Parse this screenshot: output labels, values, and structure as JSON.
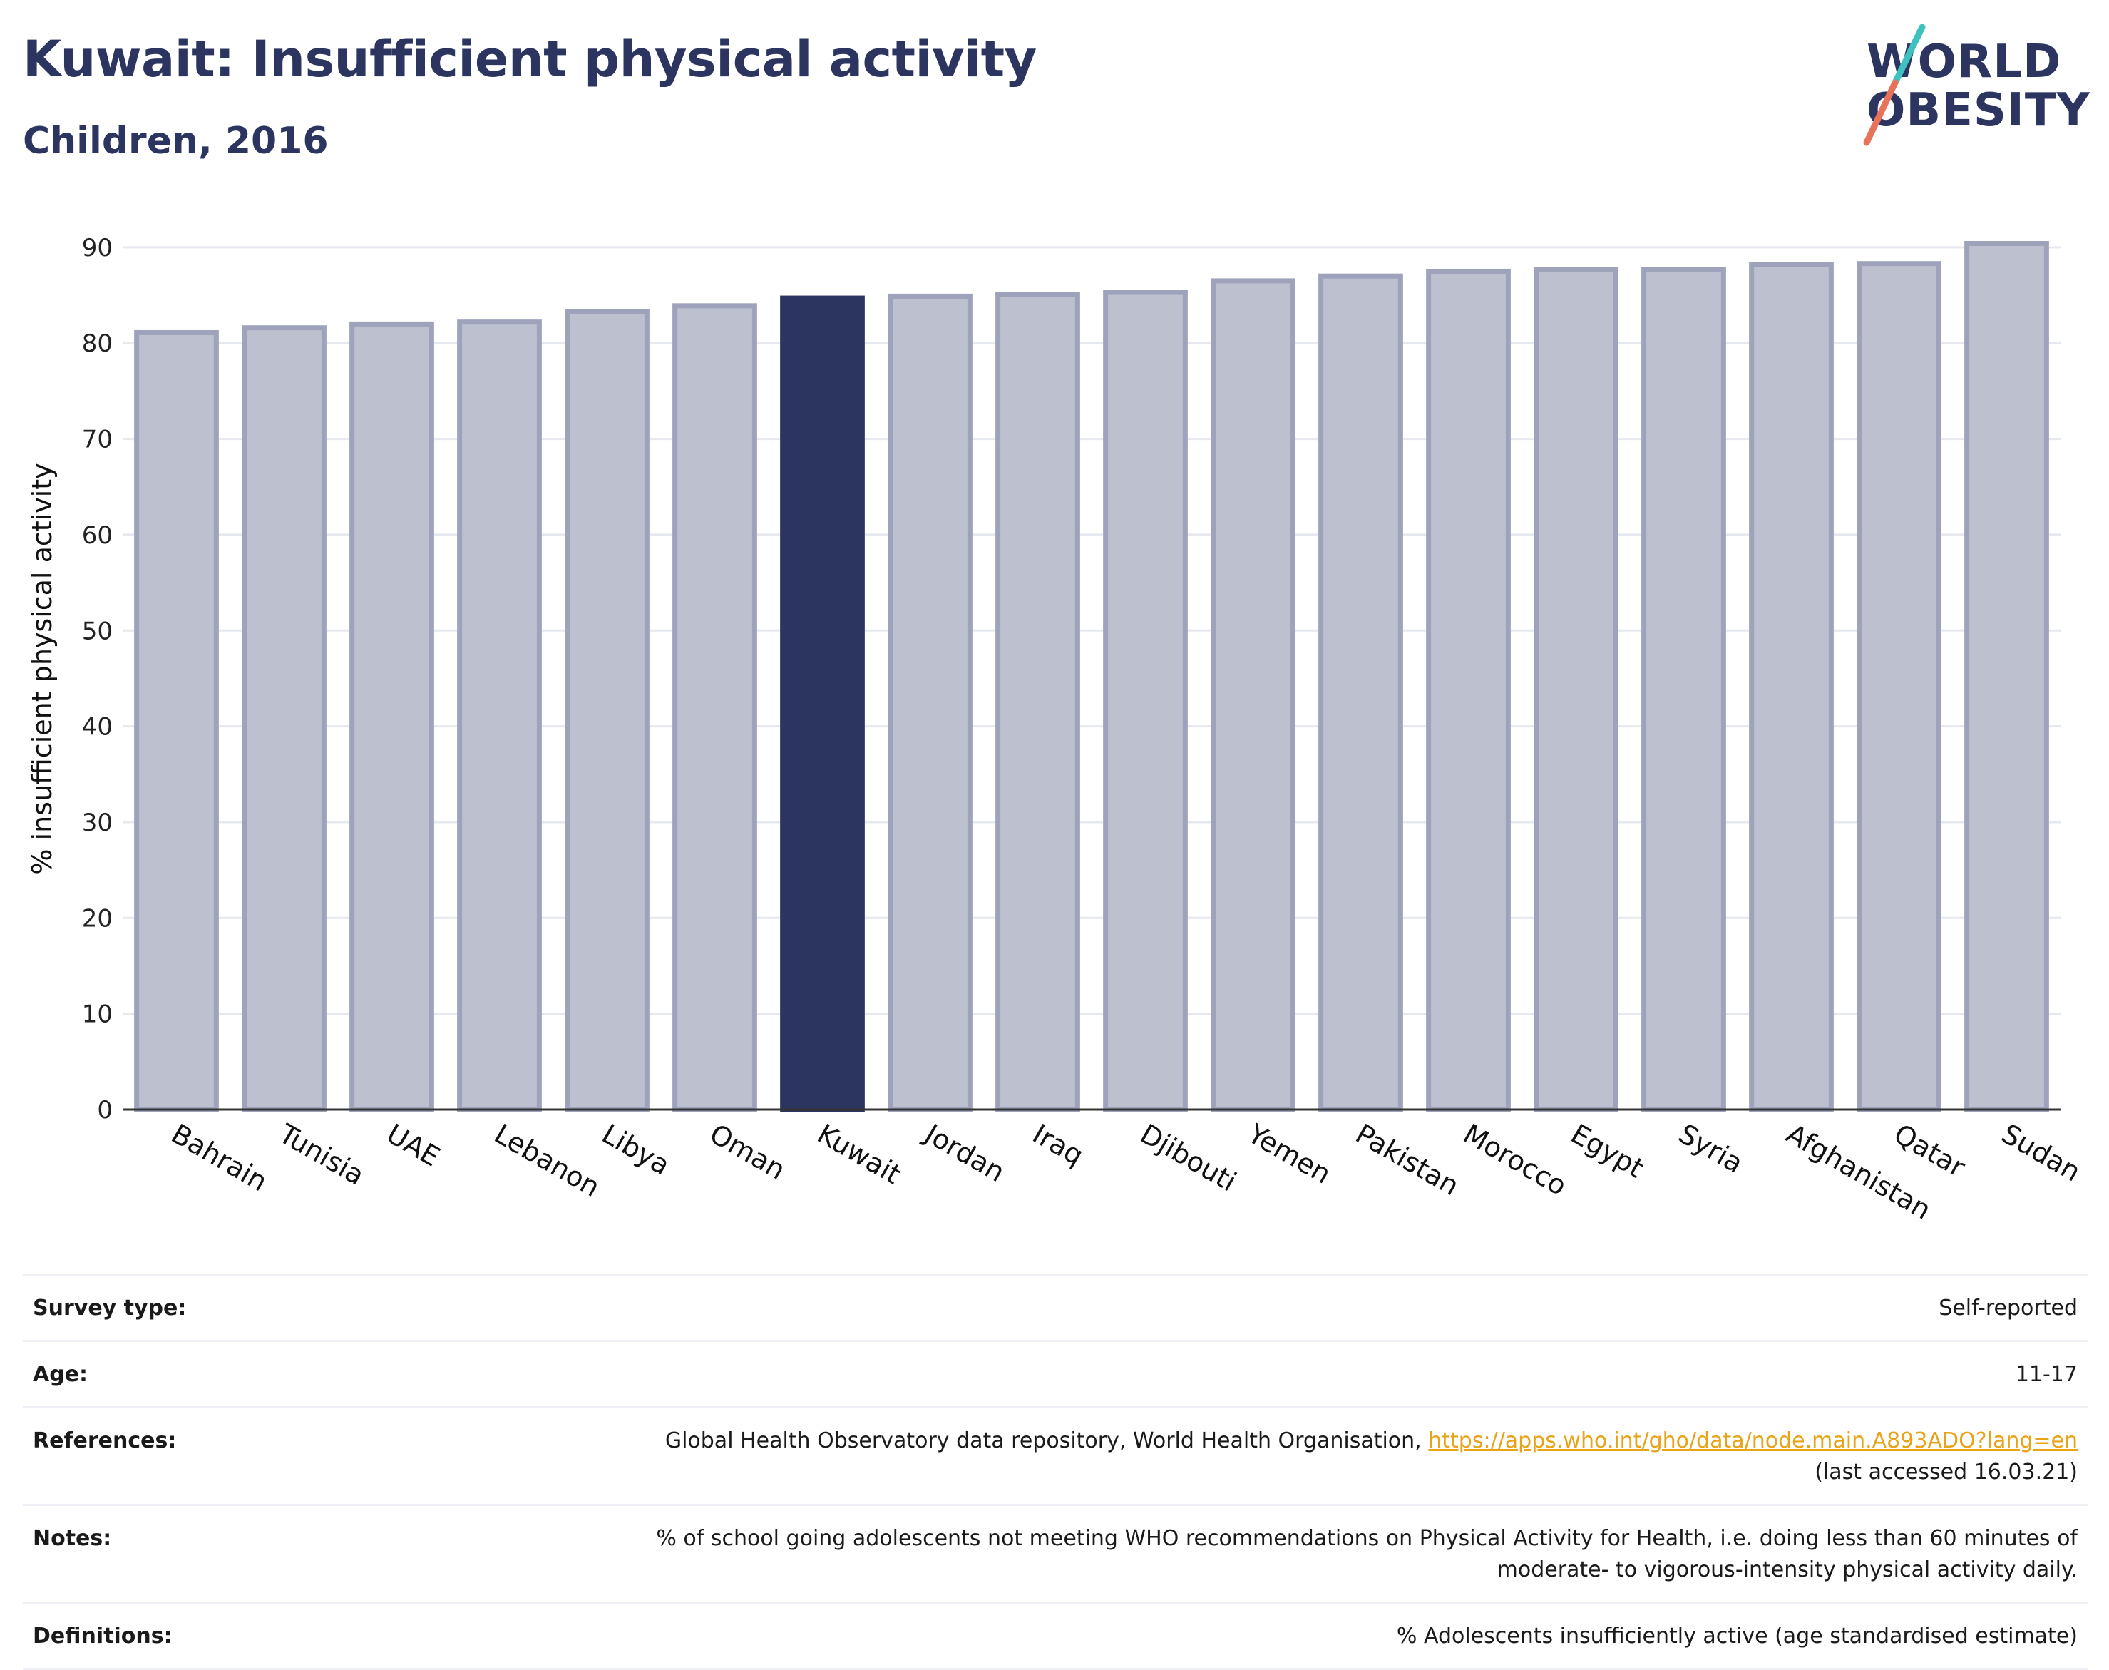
{
  "header": {
    "title": "Kuwait: Insufficient physical activity",
    "subtitle": "Children, 2016"
  },
  "logo": {
    "line1": "WORLD",
    "line2": "OBESITY",
    "colors": {
      "text": "#2c3560",
      "slash_top": "#3fc1c0",
      "slash_bottom": "#e8735a"
    }
  },
  "chart_data": {
    "type": "bar",
    "categories": [
      "Bahrain",
      "Tunisia",
      "UAE",
      "Lebanon",
      "Libya",
      "Oman",
      "Kuwait",
      "Jordan",
      "Iraq",
      "Djibouti",
      "Yemen",
      "Pakistan",
      "Morocco",
      "Egypt",
      "Syria",
      "Afghanistan",
      "Qatar",
      "Sudan"
    ],
    "values": [
      81.1,
      81.6,
      82.0,
      82.2,
      83.3,
      83.9,
      84.7,
      84.9,
      85.1,
      85.3,
      86.5,
      87.0,
      87.5,
      87.7,
      87.7,
      88.2,
      88.3,
      90.4
    ],
    "highlight": "Kuwait",
    "ylabel": "% insufficient physical activity",
    "xlabel": "",
    "ylim": [
      0,
      92
    ],
    "yticks": [
      0,
      10,
      20,
      30,
      40,
      50,
      60,
      70,
      80,
      90
    ],
    "grid": true,
    "colors": {
      "bar": "#bdc0cf",
      "bar_edge": "#9ea3bb",
      "highlight": "#2c3560",
      "grid": "#e6e8ef",
      "axis": "#333333"
    }
  },
  "info": {
    "survey_type": {
      "label": "Survey type:",
      "value": "Self-reported"
    },
    "age": {
      "label": "Age:",
      "value": "11-17"
    },
    "references": {
      "label": "References:",
      "text": "Global Health Observatory data repository, World Health Organisation,",
      "link": "https://apps.who.int/gho/data/node.main.A893ADO?lang=en",
      "accessed": "(last accessed 16.03.21)"
    },
    "notes": {
      "label": "Notes:",
      "line1": "% of school going adolescents not meeting WHO recommendations on Physical Activity for Health, i.e. doing less than 60 minutes of",
      "line2": "moderate- to vigorous-intensity physical activity daily."
    },
    "definitions": {
      "label": "Definitions:",
      "value": "% Adolescents insufficiently active (age standardised estimate)"
    }
  }
}
